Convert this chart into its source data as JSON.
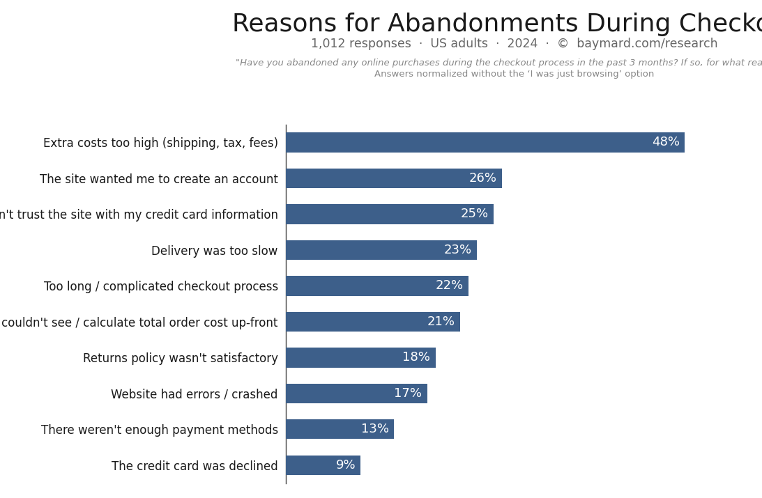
{
  "title": "Reasons for Abandonments During Checkout",
  "subtitle": "1,012 responses  ·  US adults  ·  2024  ·  ©  baymard.com/research",
  "footnote_line1": "\"Have you abandoned any online purchases during the checkout process in the past 3 months? If so, for what reasons?\"",
  "footnote_line2": "Answers normalized without the ‘I was just browsing’ option",
  "categories": [
    "Extra costs too high (shipping, tax, fees)",
    "The site wanted me to create an account",
    "I didn't trust the site with my credit card information",
    "Delivery was too slow",
    "Too long / complicated checkout process",
    "I couldn't see / calculate total order cost up-front",
    "Returns policy wasn't satisfactory",
    "Website had errors / crashed",
    "There weren't enough payment methods",
    "The credit card was declined"
  ],
  "values": [
    48,
    26,
    25,
    23,
    22,
    21,
    18,
    17,
    13,
    9
  ],
  "bar_color": "#3d5f8a",
  "label_color": "#ffffff",
  "title_color": "#1a1a1a",
  "subtitle_color": "#666666",
  "footnote_color": "#888888",
  "background_color": "#ffffff",
  "xlim": [
    0,
    55
  ],
  "bar_height": 0.55,
  "title_fontsize": 26,
  "subtitle_fontsize": 12.5,
  "footnote_fontsize": 9.5,
  "label_fontsize": 13,
  "category_fontsize": 12
}
